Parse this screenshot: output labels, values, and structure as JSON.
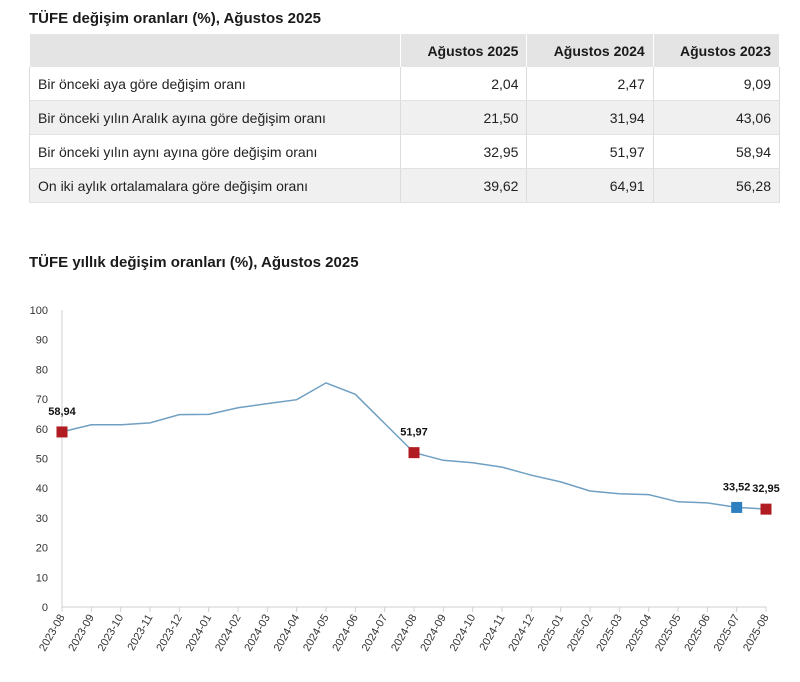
{
  "table": {
    "title": "TÜFE değişim oranları (%), Ağustos 2025",
    "headers": [
      "",
      "Ağustos 2025",
      "Ağustos 2024",
      "Ağustos 2023"
    ],
    "rows": [
      {
        "label": "Bir önceki aya göre değişim oranı",
        "values": [
          "2,04",
          "2,47",
          "9,09"
        ]
      },
      {
        "label": "Bir önceki yılın Aralık ayına göre değişim oranı",
        "values": [
          "21,50",
          "31,94",
          "43,06"
        ]
      },
      {
        "label": "Bir önceki yılın aynı ayına göre değişim oranı",
        "values": [
          "32,95",
          "51,97",
          "58,94"
        ]
      },
      {
        "label": "On iki aylık ortalamalara göre değişim oranı",
        "values": [
          "39,62",
          "64,91",
          "56,28"
        ]
      }
    ]
  },
  "chart_data": {
    "type": "line",
    "title": "TÜFE yıllık değişim oranları (%), Ağustos 2025",
    "xlabel": "",
    "ylabel": "",
    "ylim": [
      0,
      100
    ],
    "yticks": [
      0,
      10,
      20,
      30,
      40,
      50,
      60,
      70,
      80,
      90,
      100
    ],
    "x": [
      "2023-08",
      "2023-09",
      "2023-10",
      "2023-11",
      "2023-12",
      "2024-01",
      "2024-02",
      "2024-03",
      "2024-04",
      "2024-05",
      "2024-06",
      "2024-07",
      "2024-08",
      "2024-09",
      "2024-10",
      "2024-11",
      "2024-12",
      "2025-01",
      "2025-02",
      "2025-03",
      "2025-04",
      "2025-05",
      "2025-06",
      "2025-07",
      "2025-08"
    ],
    "series": [
      {
        "values": [
          58.94,
          61.36,
          61.36,
          61.98,
          64.77,
          64.86,
          67.07,
          68.5,
          69.8,
          75.45,
          71.6,
          61.78,
          51.97,
          49.38,
          48.58,
          47.09,
          44.38,
          42.12,
          39.05,
          38.1,
          37.86,
          35.41,
          35.05,
          33.52,
          32.95
        ],
        "color": "#6f9fc2"
      }
    ],
    "highlights": [
      {
        "index": 0,
        "label": "58,94",
        "color": "#b01c22"
      },
      {
        "index": 12,
        "label": "51,97",
        "color": "#b01c22"
      },
      {
        "index": 23,
        "label": "33,52",
        "color": "#2e7fbf"
      },
      {
        "index": 24,
        "label": "32,95",
        "color": "#b01c22"
      }
    ],
    "grid": false
  }
}
